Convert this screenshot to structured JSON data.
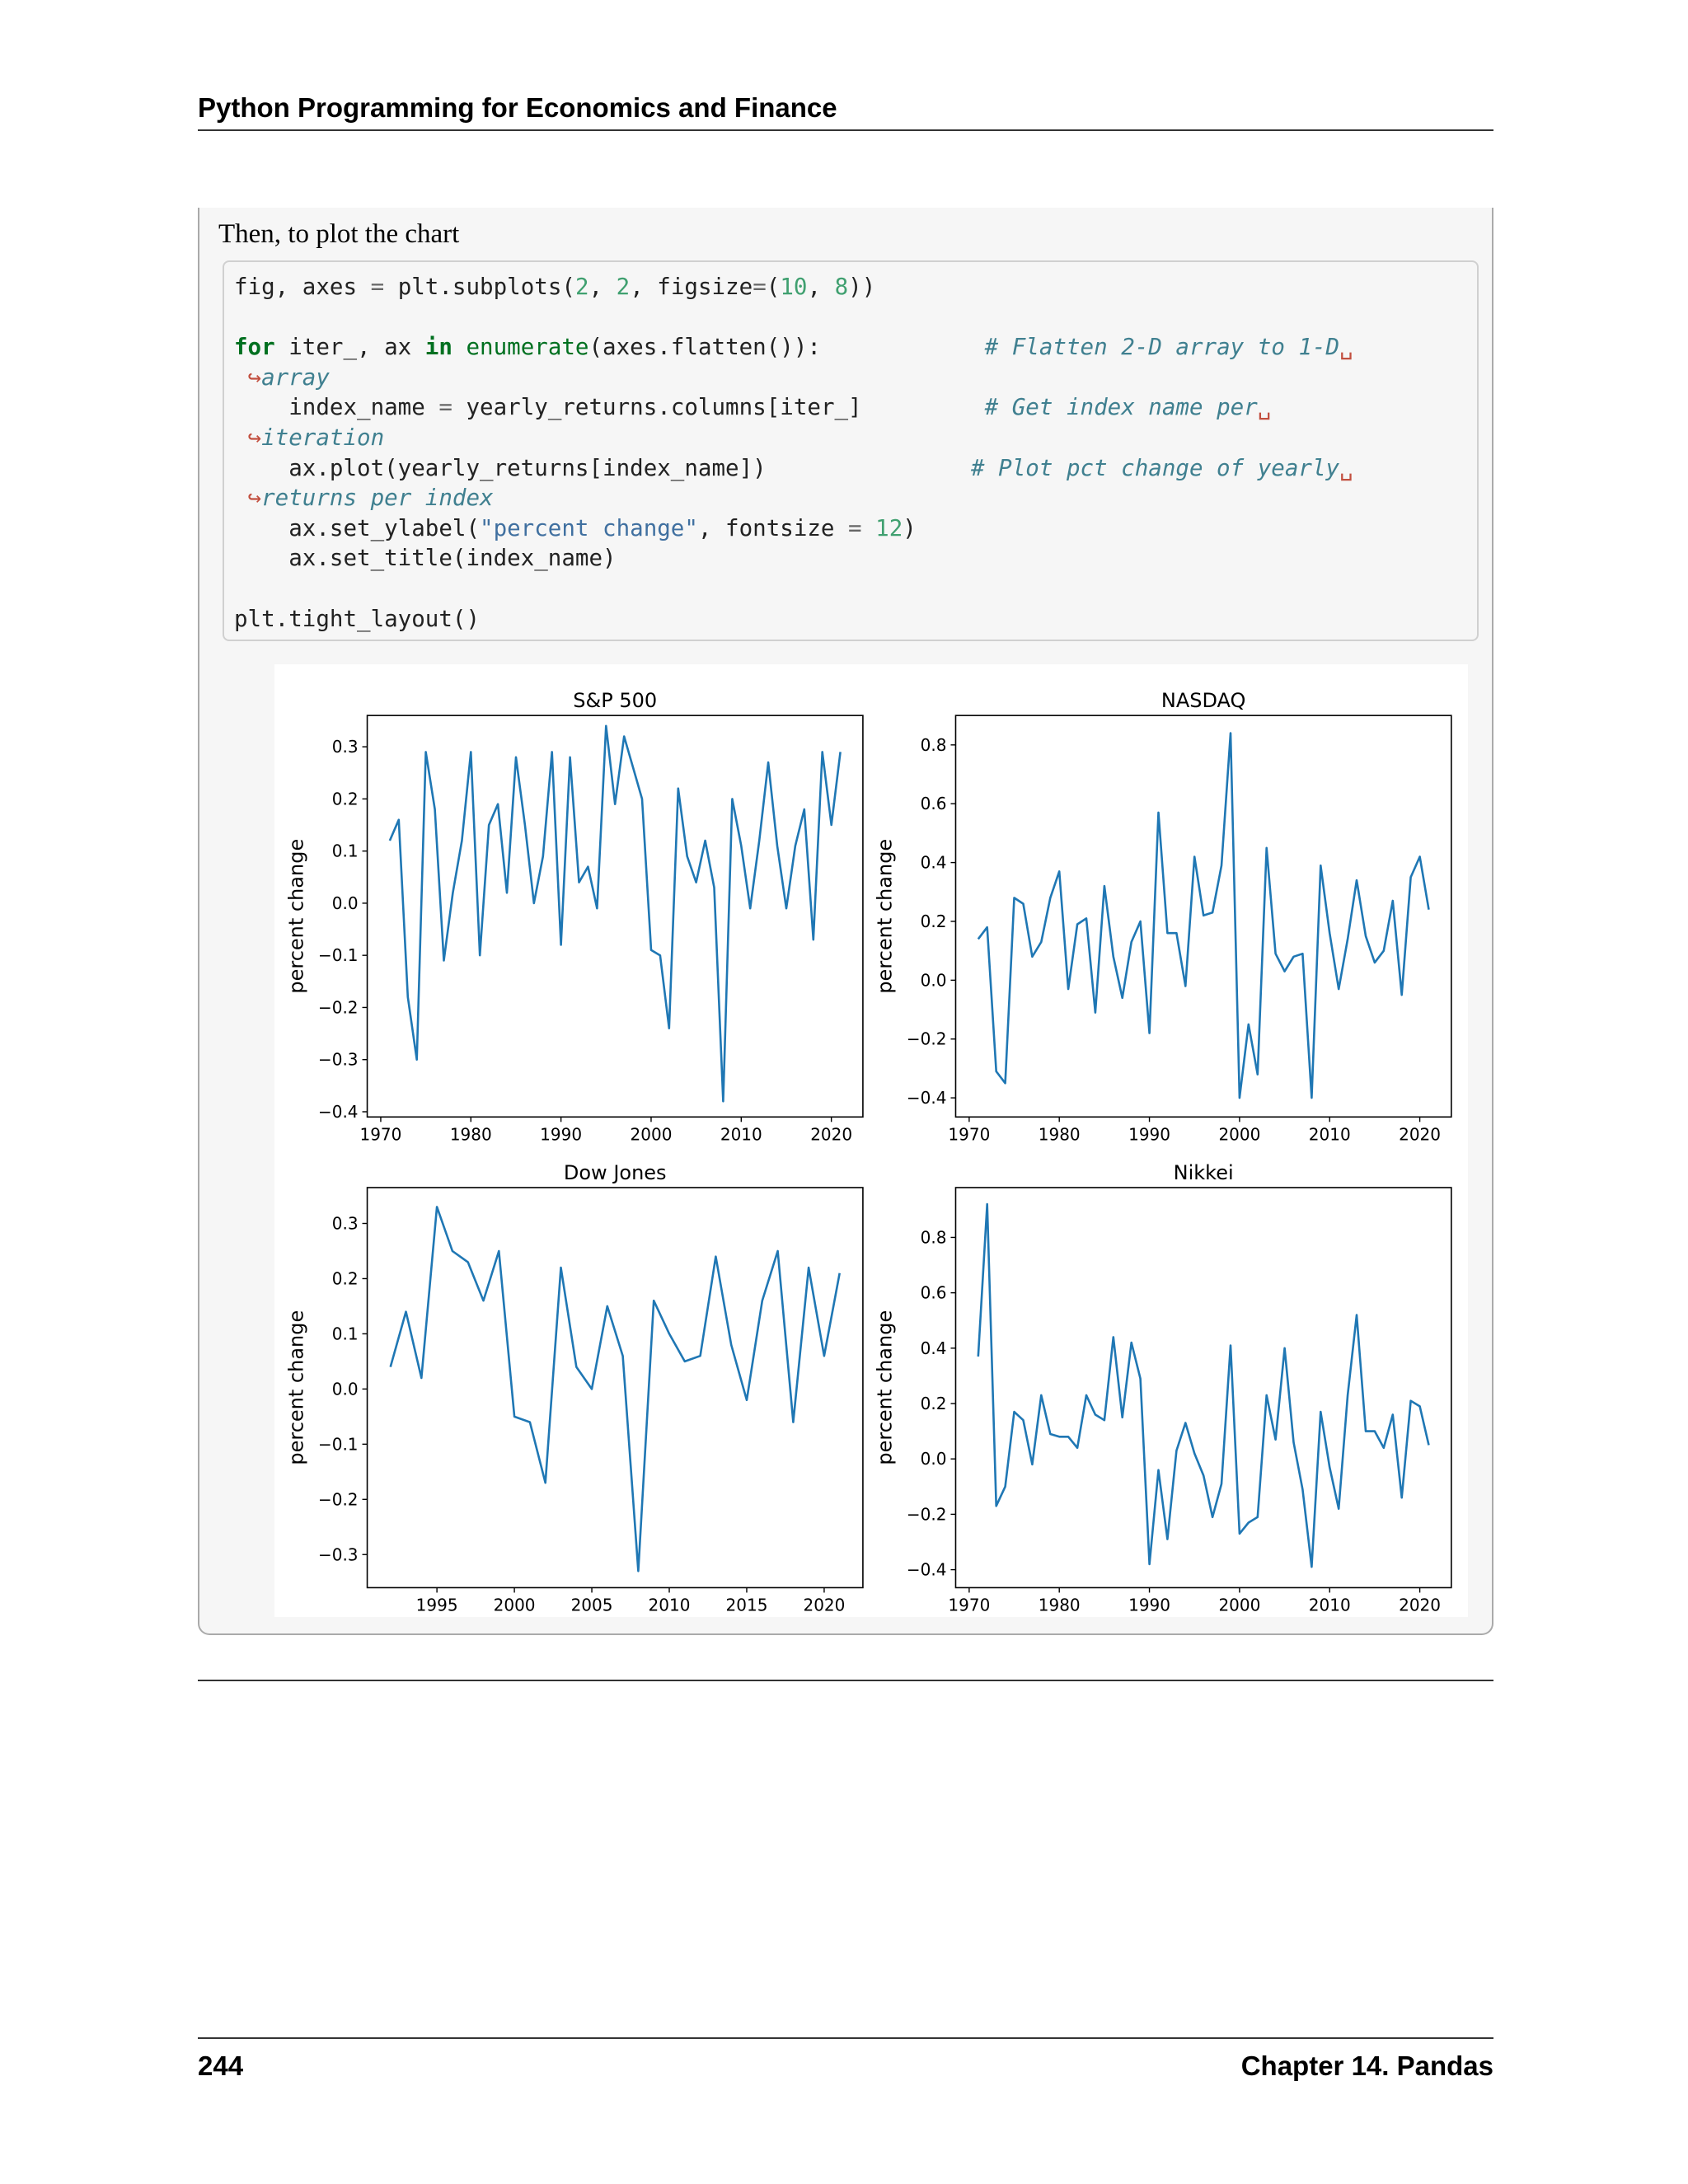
{
  "header": {
    "book_title": "Python Programming for Economics and Finance"
  },
  "intro": "Then, to plot the chart",
  "code": {
    "lines": [
      [
        [
          "",
          "fig, axes "
        ],
        [
          "op",
          "="
        ],
        [
          "",
          " plt.subplots("
        ],
        [
          "num",
          "2"
        ],
        [
          "",
          ", "
        ],
        [
          "num",
          "2"
        ],
        [
          "",
          ", figsize"
        ],
        [
          "op",
          "="
        ],
        [
          "",
          "("
        ],
        [
          "num",
          "10"
        ],
        [
          "",
          ", "
        ],
        [
          "num",
          "8"
        ],
        [
          "",
          "))"
        ]
      ],
      [],
      [
        [
          "kw",
          "for"
        ],
        [
          "",
          " iter_, ax "
        ],
        [
          "kw",
          "in"
        ],
        [
          "",
          " "
        ],
        [
          "nb",
          "enumerate"
        ],
        [
          "",
          "(axes.flatten()):            "
        ],
        [
          "cm",
          "# Flatten 2-D array to 1-D"
        ],
        [
          "wrap",
          "␣"
        ]
      ],
      [
        [
          "cont",
          " ↪"
        ],
        [
          "cm-cont",
          "array"
        ]
      ],
      [
        [
          "",
          "    index_name "
        ],
        [
          "op",
          "="
        ],
        [
          "",
          " yearly_returns.columns[iter_]         "
        ],
        [
          "cm",
          "# Get index name per"
        ],
        [
          "wrap",
          "␣"
        ]
      ],
      [
        [
          "cont",
          " ↪"
        ],
        [
          "cm-cont",
          "iteration"
        ]
      ],
      [
        [
          "",
          "    ax.plot(yearly_returns[index_name])               "
        ],
        [
          "cm",
          "# Plot pct change of yearly"
        ],
        [
          "wrap",
          "␣"
        ]
      ],
      [
        [
          "cont",
          " ↪"
        ],
        [
          "cm-cont",
          "returns per index"
        ]
      ],
      [
        [
          "",
          "    ax.set_ylabel("
        ],
        [
          "str",
          "\"percent change\""
        ],
        [
          "",
          ", fontsize "
        ],
        [
          "op",
          "="
        ],
        [
          "",
          " "
        ],
        [
          "num",
          "12"
        ],
        [
          "",
          ")"
        ]
      ],
      [
        [
          "",
          "    ax.set_title(index_name)"
        ]
      ],
      [],
      [
        [
          "",
          "plt.tight_layout()"
        ]
      ]
    ]
  },
  "chart_data": [
    {
      "type": "line",
      "title": "S&P 500",
      "ylabel": "percent change",
      "xlabel": "",
      "xlim": [
        1968.5,
        2023.5
      ],
      "ylim": [
        -0.41,
        0.36
      ],
      "xticks": [
        1970,
        1980,
        1990,
        2000,
        2010,
        2020
      ],
      "yticks": [
        -0.4,
        -0.3,
        -0.2,
        -0.1,
        0.0,
        0.1,
        0.2,
        0.3
      ],
      "ytick_labels": [
        "−0.4",
        "−0.3",
        "−0.2",
        "−0.1",
        "0.0",
        "0.1",
        "0.2",
        "0.3"
      ],
      "line_color": "#1f77b4",
      "x": [
        1971,
        1972,
        1973,
        1974,
        1975,
        1976,
        1977,
        1978,
        1979,
        1980,
        1981,
        1982,
        1983,
        1984,
        1985,
        1986,
        1987,
        1988,
        1989,
        1990,
        1991,
        1992,
        1993,
        1994,
        1995,
        1996,
        1997,
        1998,
        1999,
        2000,
        2001,
        2002,
        2003,
        2004,
        2005,
        2006,
        2007,
        2008,
        2009,
        2010,
        2011,
        2012,
        2013,
        2014,
        2015,
        2016,
        2017,
        2018,
        2019,
        2020,
        2021
      ],
      "y": [
        0.12,
        0.16,
        -0.18,
        -0.3,
        0.29,
        0.18,
        -0.11,
        0.02,
        0.12,
        0.29,
        -0.1,
        0.15,
        0.19,
        0.02,
        0.28,
        0.15,
        0.0,
        0.09,
        0.29,
        -0.08,
        0.28,
        0.04,
        0.07,
        -0.01,
        0.34,
        0.19,
        0.32,
        0.26,
        0.2,
        -0.09,
        -0.1,
        -0.24,
        0.22,
        0.09,
        0.04,
        0.12,
        0.03,
        -0.38,
        0.2,
        0.11,
        -0.01,
        0.12,
        0.27,
        0.11,
        -0.01,
        0.11,
        0.18,
        -0.07,
        0.29,
        0.15,
        0.29
      ]
    },
    {
      "type": "line",
      "title": "NASDAQ",
      "ylabel": "percent change",
      "xlabel": "",
      "xlim": [
        1968.5,
        2023.5
      ],
      "ylim": [
        -0.465,
        0.9
      ],
      "xticks": [
        1970,
        1980,
        1990,
        2000,
        2010,
        2020
      ],
      "yticks": [
        -0.4,
        -0.2,
        0.0,
        0.2,
        0.4,
        0.6,
        0.8
      ],
      "ytick_labels": [
        "−0.4",
        "−0.2",
        "0.0",
        "0.2",
        "0.4",
        "0.6",
        "0.8"
      ],
      "line_color": "#1f77b4",
      "x": [
        1971,
        1972,
        1973,
        1974,
        1975,
        1976,
        1977,
        1978,
        1979,
        1980,
        1981,
        1982,
        1983,
        1984,
        1985,
        1986,
        1987,
        1988,
        1989,
        1990,
        1991,
        1992,
        1993,
        1994,
        1995,
        1996,
        1997,
        1998,
        1999,
        2000,
        2001,
        2002,
        2003,
        2004,
        2005,
        2006,
        2007,
        2008,
        2009,
        2010,
        2011,
        2012,
        2013,
        2014,
        2015,
        2016,
        2017,
        2018,
        2019,
        2020,
        2021
      ],
      "y": [
        0.14,
        0.18,
        -0.31,
        -0.35,
        0.28,
        0.26,
        0.08,
        0.13,
        0.28,
        0.37,
        -0.03,
        0.19,
        0.21,
        -0.11,
        0.32,
        0.08,
        -0.06,
        0.13,
        0.2,
        -0.18,
        0.57,
        0.16,
        0.16,
        -0.02,
        0.42,
        0.22,
        0.23,
        0.39,
        0.84,
        -0.4,
        -0.15,
        -0.32,
        0.45,
        0.09,
        0.03,
        0.08,
        0.09,
        -0.4,
        0.39,
        0.16,
        -0.03,
        0.14,
        0.34,
        0.15,
        0.06,
        0.1,
        0.27,
        -0.05,
        0.35,
        0.42,
        0.24
      ]
    },
    {
      "type": "line",
      "title": "Dow Jones",
      "ylabel": "percent change",
      "xlabel": "",
      "xlim": [
        1990.5,
        2022.5
      ],
      "ylim": [
        -0.36,
        0.365
      ],
      "xticks": [
        1995,
        2000,
        2005,
        2010,
        2015,
        2020
      ],
      "yticks": [
        -0.3,
        -0.2,
        -0.1,
        0.0,
        0.1,
        0.2,
        0.3
      ],
      "ytick_labels": [
        "−0.3",
        "−0.2",
        "−0.1",
        "0.0",
        "0.1",
        "0.2",
        "0.3"
      ],
      "line_color": "#1f77b4",
      "x": [
        1992,
        1993,
        1994,
        1995,
        1996,
        1997,
        1998,
        1999,
        2000,
        2001,
        2002,
        2003,
        2004,
        2005,
        2006,
        2007,
        2008,
        2009,
        2010,
        2011,
        2012,
        2013,
        2014,
        2015,
        2016,
        2017,
        2018,
        2019,
        2020,
        2021
      ],
      "y": [
        0.04,
        0.14,
        0.02,
        0.33,
        0.25,
        0.23,
        0.16,
        0.25,
        -0.05,
        -0.06,
        -0.17,
        0.22,
        0.04,
        0.0,
        0.15,
        0.06,
        -0.33,
        0.16,
        0.1,
        0.05,
        0.06,
        0.24,
        0.08,
        -0.02,
        0.16,
        0.25,
        -0.06,
        0.22,
        0.06,
        0.21
      ]
    },
    {
      "type": "line",
      "title": "Nikkei",
      "ylabel": "percent change",
      "xlabel": "",
      "xlim": [
        1968.5,
        2023.5
      ],
      "ylim": [
        -0.465,
        0.98
      ],
      "xticks": [
        1970,
        1980,
        1990,
        2000,
        2010,
        2020
      ],
      "yticks": [
        -0.4,
        -0.2,
        0.0,
        0.2,
        0.4,
        0.6,
        0.8
      ],
      "ytick_labels": [
        "−0.4",
        "−0.2",
        "0.0",
        "0.2",
        "0.4",
        "0.6",
        "0.8"
      ],
      "line_color": "#1f77b4",
      "x": [
        1971,
        1972,
        1973,
        1974,
        1975,
        1976,
        1977,
        1978,
        1979,
        1980,
        1981,
        1982,
        1983,
        1984,
        1985,
        1986,
        1987,
        1988,
        1989,
        1990,
        1991,
        1992,
        1993,
        1994,
        1995,
        1996,
        1997,
        1998,
        1999,
        2000,
        2001,
        2002,
        2003,
        2004,
        2005,
        2006,
        2007,
        2008,
        2009,
        2010,
        2011,
        2012,
        2013,
        2014,
        2015,
        2016,
        2017,
        2018,
        2019,
        2020,
        2021
      ],
      "y": [
        0.37,
        0.92,
        -0.17,
        -0.1,
        0.17,
        0.14,
        -0.02,
        0.23,
        0.09,
        0.08,
        0.08,
        0.04,
        0.23,
        0.16,
        0.14,
        0.44,
        0.15,
        0.42,
        0.29,
        -0.38,
        -0.04,
        -0.29,
        0.03,
        0.13,
        0.02,
        -0.06,
        -0.21,
        -0.09,
        0.41,
        -0.27,
        -0.23,
        -0.21,
        0.23,
        0.07,
        0.4,
        0.06,
        -0.11,
        -0.39,
        0.17,
        -0.03,
        -0.18,
        0.23,
        0.52,
        0.1,
        0.1,
        0.04,
        0.16,
        -0.14,
        0.21,
        0.19,
        0.05
      ]
    }
  ],
  "footer": {
    "page_number": "244",
    "chapter": "Chapter 14.  Pandas"
  }
}
